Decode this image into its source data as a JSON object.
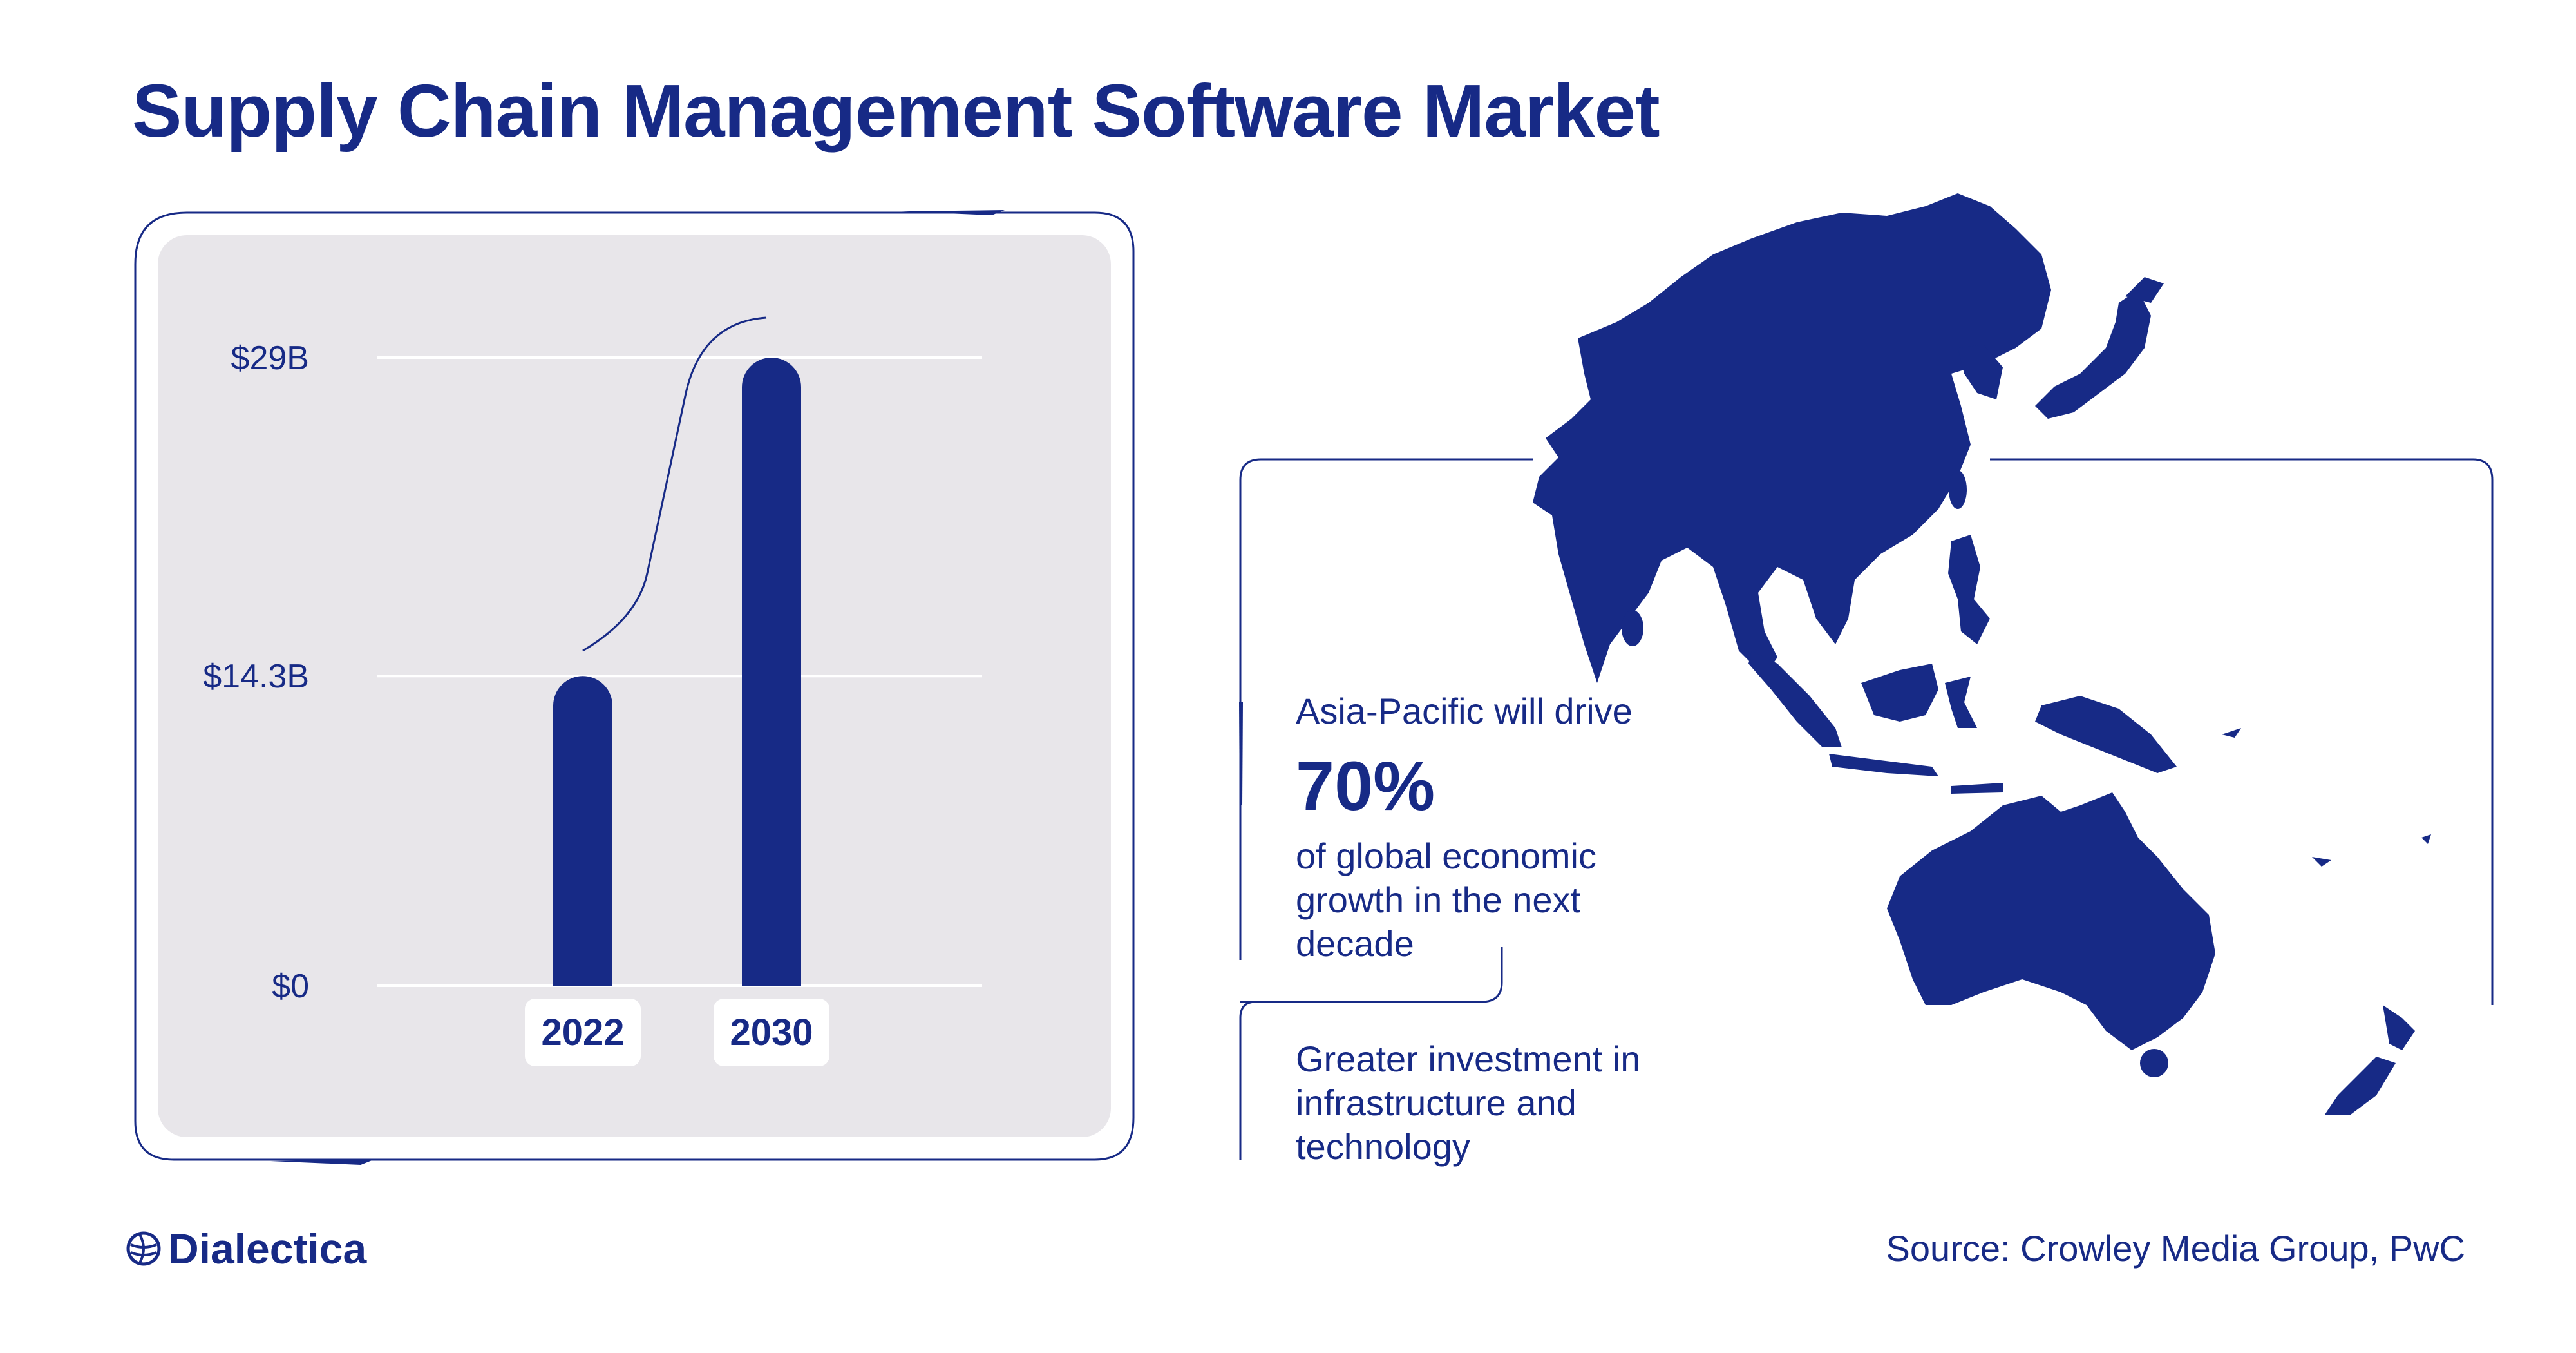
{
  "title": "Supply Chain Management Software Market",
  "chart_data": {
    "type": "bar",
    "categories": [
      "2022",
      "2030"
    ],
    "values": [
      14.3,
      29
    ],
    "y_ticks": [
      {
        "value": 0,
        "label": "$0"
      },
      {
        "value": 14.3,
        "label": "$14.3B"
      },
      {
        "value": 29,
        "label": "$29B"
      }
    ],
    "ylim": [
      0,
      29
    ],
    "unit": "USD billions",
    "grid": true,
    "bar_color": "#172a86",
    "panel_color": "#e8e6ea"
  },
  "callout": {
    "intro": "Asia-Pacific will drive",
    "stat": "70%",
    "line1": "of global economic",
    "line2": "growth in the next",
    "line3": "decade",
    "second_line1": "Greater investment in",
    "second_line2": "infrastructure and",
    "second_line3": "technology"
  },
  "map": {
    "region": "Asia-Pacific",
    "color": "#172a86"
  },
  "logo": {
    "name": "Dialectica",
    "icon": "globe-icon"
  },
  "source": "Source: Crowley Media Group, PwC",
  "colors": {
    "primary": "#172a86",
    "panel": "#e8e6ea",
    "grid": "#ffffff"
  }
}
